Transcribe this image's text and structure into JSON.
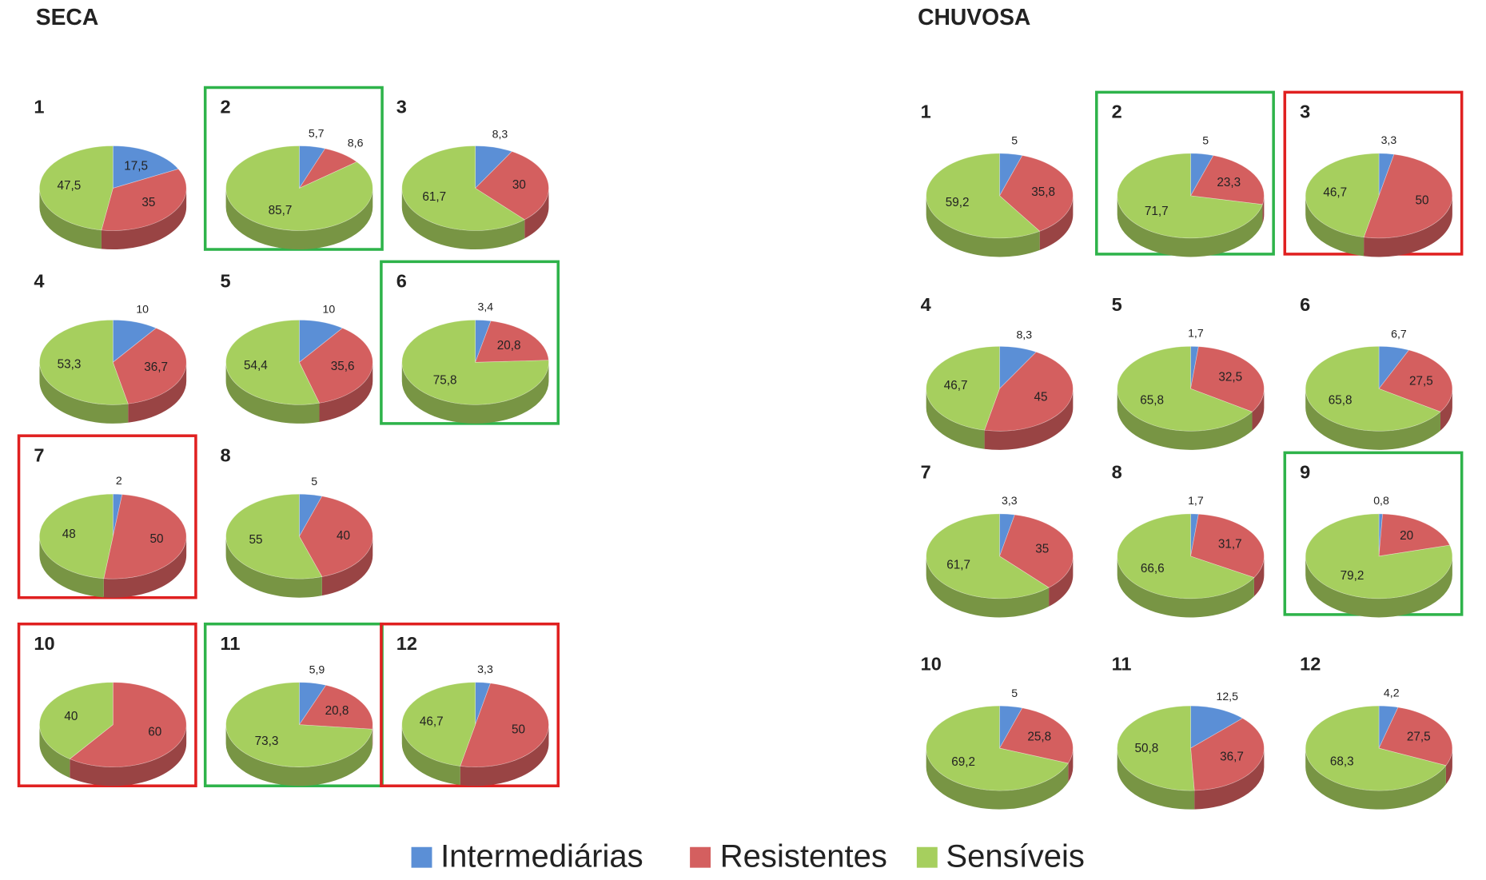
{
  "headings": [
    "SECA",
    "CHUVOSA"
  ],
  "legend": {
    "categories": [
      "Intermediárias",
      "Resistentes",
      "Sensíveis"
    ],
    "colors": [
      "#5b8fd6",
      "#d45f5f",
      "#a6cf5e"
    ]
  },
  "chart_data": [
    {
      "type": "pie",
      "title": "1",
      "values": [
        17.5,
        35,
        47.5
      ],
      "value_labels": [
        "17,5",
        "35",
        "47,5"
      ]
    },
    {
      "type": "pie",
      "title": "2",
      "values": [
        5.7,
        8.6,
        85.7
      ],
      "value_labels": [
        "5,7",
        "8,6",
        "85,7"
      ],
      "highlight": "#2eb34a"
    },
    {
      "type": "pie",
      "title": "3",
      "values": [
        8.3,
        30,
        61.7
      ],
      "value_labels": [
        "8,3",
        "30",
        "61,7"
      ]
    },
    {
      "type": "pie",
      "title": "4",
      "values": [
        10,
        36.7,
        53.3
      ],
      "value_labels": [
        "10",
        "36,7",
        "53,3"
      ]
    },
    {
      "type": "pie",
      "title": "5",
      "values": [
        10,
        35.6,
        54.4
      ],
      "value_labels": [
        "10",
        "35,6",
        "54,4"
      ]
    },
    {
      "type": "pie",
      "title": "6",
      "values": [
        3.4,
        20.8,
        75.8
      ],
      "value_labels": [
        "3,4",
        "20,8",
        "75,8"
      ],
      "highlight": "#2eb34a"
    },
    {
      "type": "pie",
      "title": "7",
      "values": [
        2,
        50,
        48
      ],
      "value_labels": [
        "2",
        "50",
        "48"
      ],
      "highlight": "#e02020"
    },
    {
      "type": "pie",
      "title": "8",
      "values": [
        5,
        40,
        55
      ],
      "value_labels": [
        "5",
        "40",
        "55"
      ]
    },
    {
      "type": "pie",
      "title": "10",
      "values": [
        null,
        60,
        40
      ],
      "value_labels": [
        null,
        "60",
        "40"
      ],
      "highlight": "#e02020"
    },
    {
      "type": "pie",
      "title": "11",
      "values": [
        5.9,
        20.8,
        73.3
      ],
      "value_labels": [
        "5,9",
        "20,8",
        "73,3"
      ],
      "highlight": "#2eb34a"
    },
    {
      "type": "pie",
      "title": "12",
      "values": [
        3.3,
        50,
        46.7
      ],
      "value_labels": [
        "3,3",
        "50",
        "46,7"
      ],
      "highlight": "#e02020"
    },
    {
      "type": "pie",
      "title": "1",
      "values": [
        5,
        35.8,
        59.2
      ],
      "value_labels": [
        "5",
        "35,8",
        "59,2"
      ]
    },
    {
      "type": "pie",
      "title": "2",
      "values": [
        5,
        23.3,
        71.7
      ],
      "value_labels": [
        "5",
        "23,3",
        "71,7"
      ],
      "highlight": "#2eb34a"
    },
    {
      "type": "pie",
      "title": "3",
      "values": [
        3.3,
        50,
        46.7
      ],
      "value_labels": [
        "3,3",
        "50",
        "46,7"
      ],
      "highlight": "#e02020"
    },
    {
      "type": "pie",
      "title": "4",
      "values": [
        8.3,
        45,
        46.7
      ],
      "value_labels": [
        "8,3",
        "45",
        "46,7"
      ]
    },
    {
      "type": "pie",
      "title": "5",
      "values": [
        1.7,
        32.5,
        65.8
      ],
      "value_labels": [
        "1,7",
        "32,5",
        "65,8"
      ]
    },
    {
      "type": "pie",
      "title": "6",
      "values": [
        6.7,
        27.5,
        65.8
      ],
      "value_labels": [
        "6,7",
        "27,5",
        "65,8"
      ]
    },
    {
      "type": "pie",
      "title": "7",
      "values": [
        3.3,
        35,
        61.7
      ],
      "value_labels": [
        "3,3",
        "35",
        "61,7"
      ]
    },
    {
      "type": "pie",
      "title": "8",
      "values": [
        1.7,
        31.7,
        66.6
      ],
      "value_labels": [
        "1,7",
        "31,7",
        "66,6"
      ]
    },
    {
      "type": "pie",
      "title": "9",
      "values": [
        0.8,
        20,
        79.2
      ],
      "value_labels": [
        "0,8",
        "20",
        "79,2"
      ],
      "highlight": "#2eb34a"
    },
    {
      "type": "pie",
      "title": "10",
      "values": [
        5,
        25.8,
        69.2
      ],
      "value_labels": [
        "5",
        "25,8",
        "69,2"
      ]
    },
    {
      "type": "pie",
      "title": "11",
      "values": [
        12.5,
        36.7,
        50.8
      ],
      "value_labels": [
        "12,5",
        "36,7",
        "50,8"
      ]
    },
    {
      "type": "pie",
      "title": "12",
      "values": [
        4.2,
        27.5,
        68.3
      ],
      "value_labels": [
        "4,2",
        "27,5",
        "68,3"
      ]
    }
  ]
}
